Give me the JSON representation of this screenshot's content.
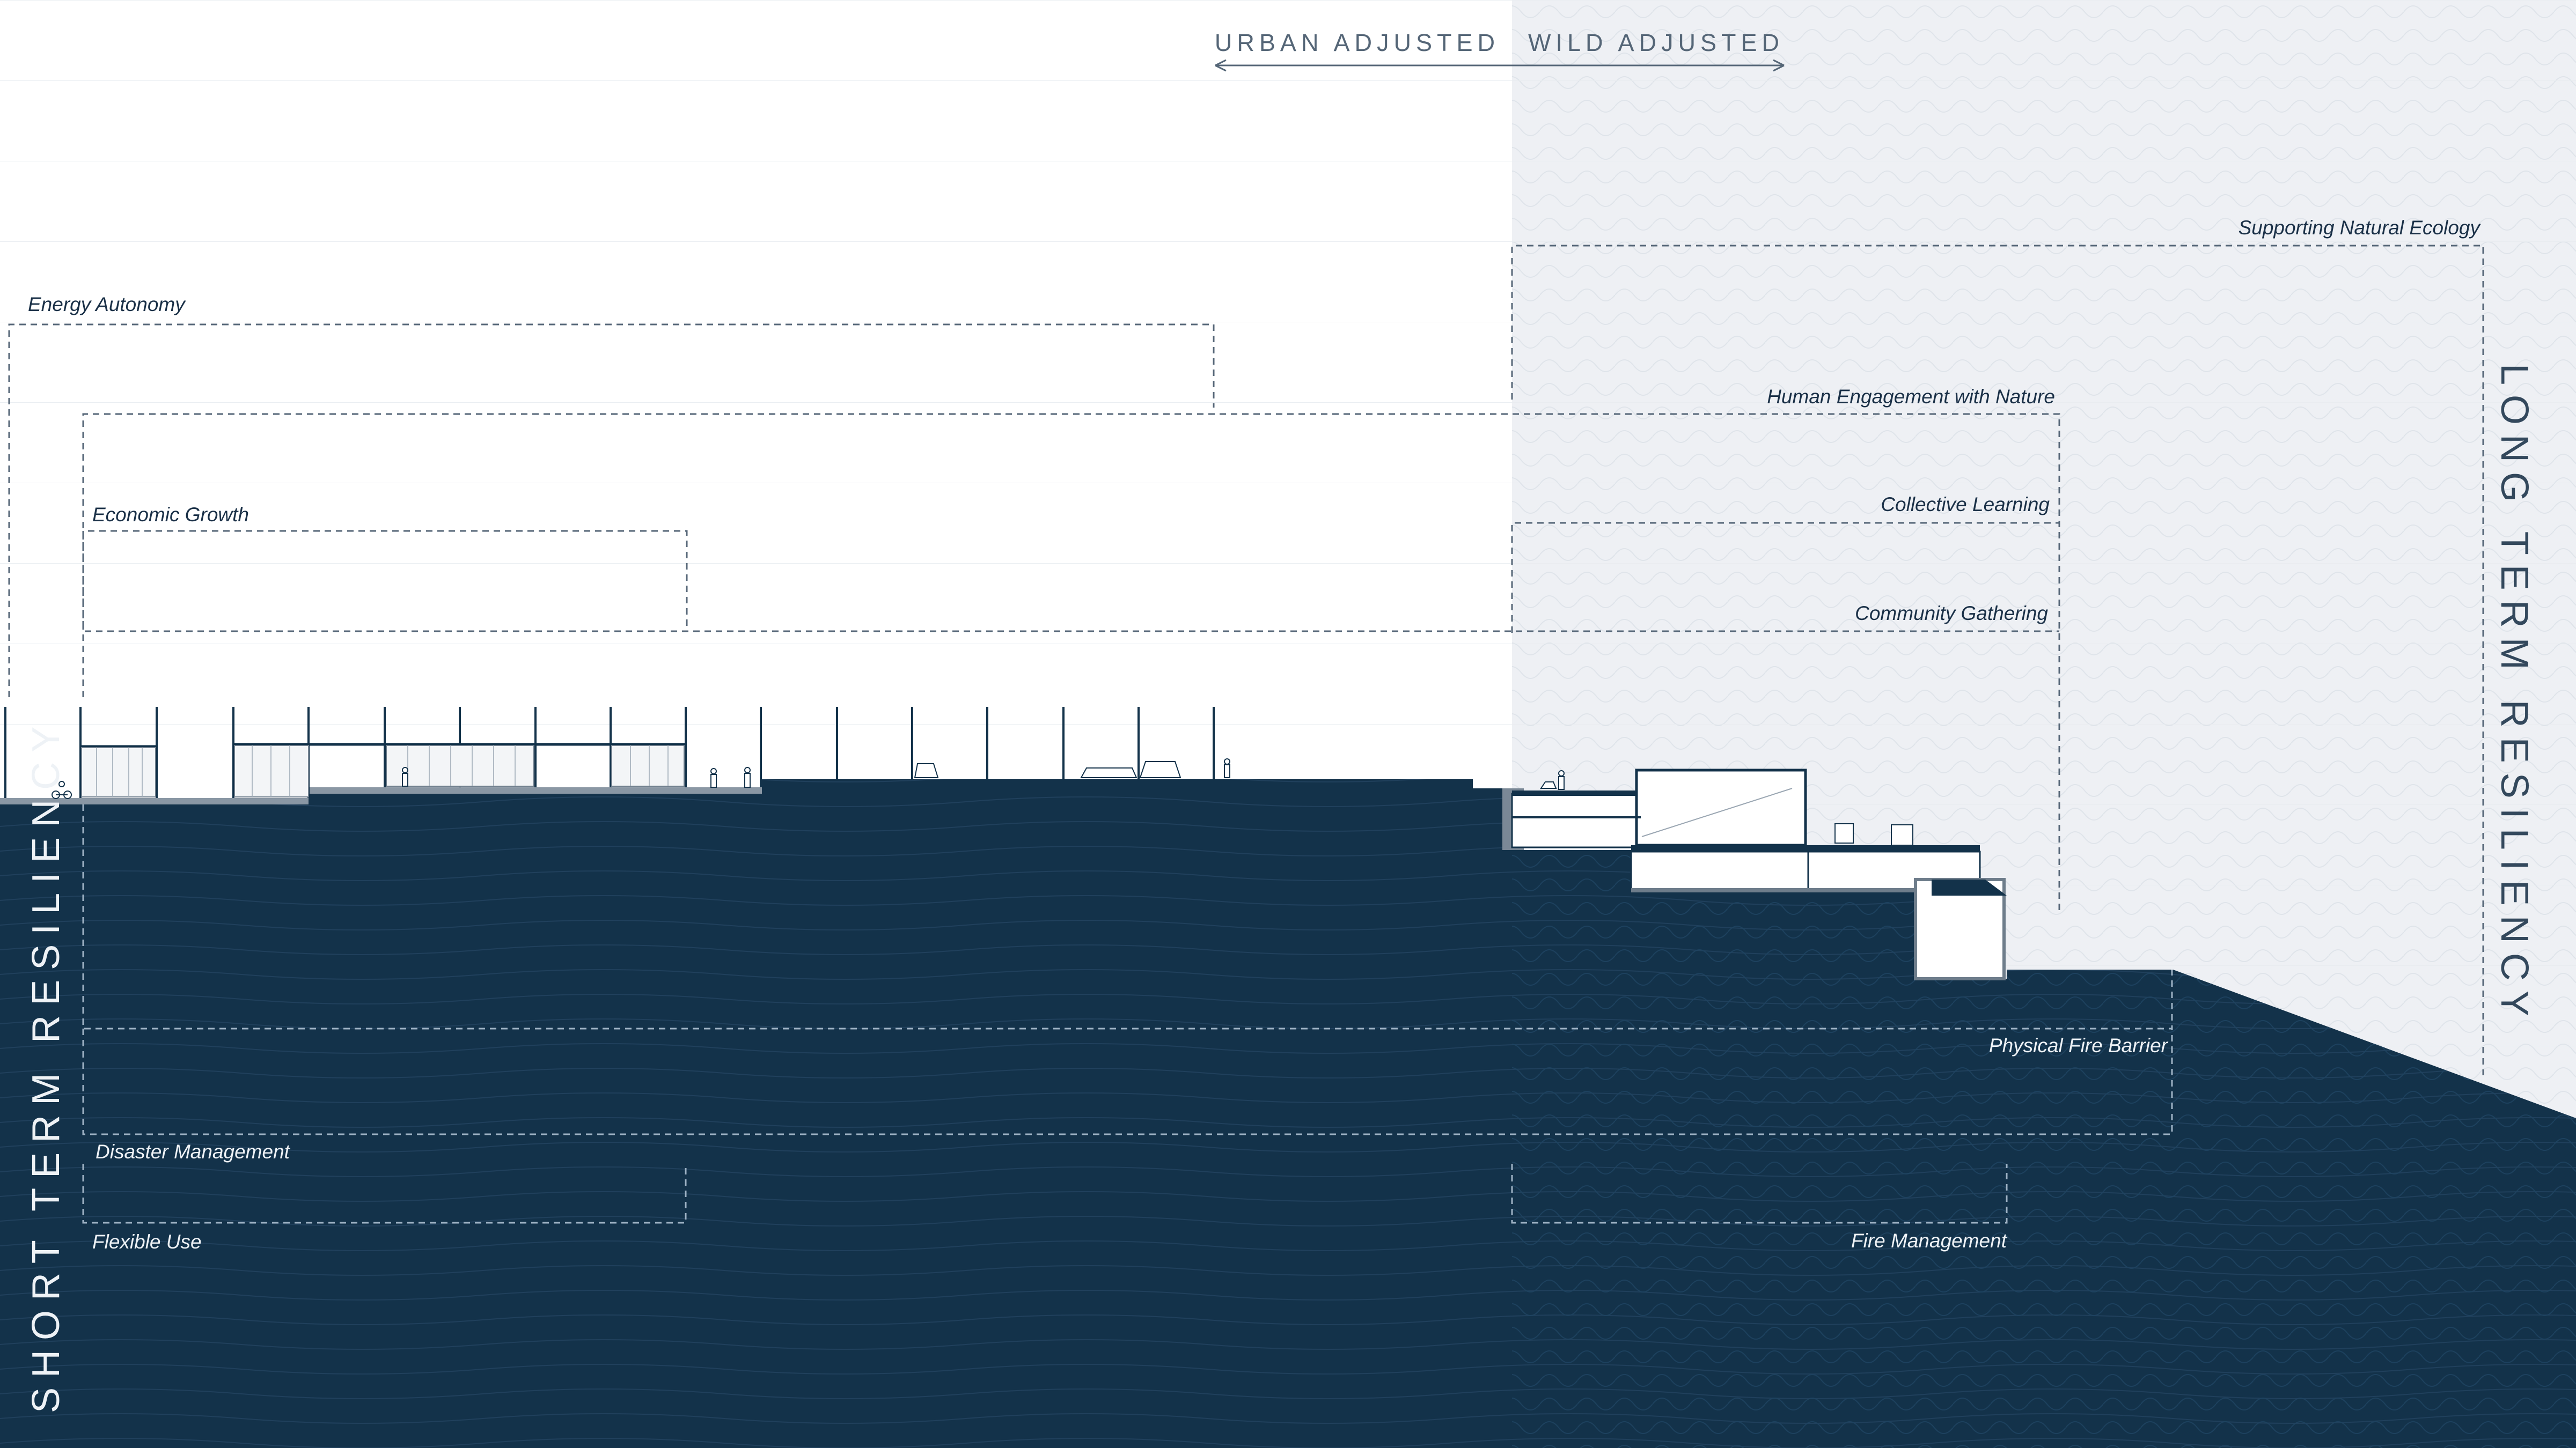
{
  "header": {
    "urban_label": "URBAN ADJUSTED",
    "wild_label": "WILD ADJUSTED"
  },
  "axes": {
    "short_term": "SHORT TERM RESILIENCY",
    "long_term": "LONG TERM RESILIENCY"
  },
  "upper_labels": {
    "supporting_natural_ecology": "Supporting Natural Ecology",
    "energy_autonomy": "Energy Autonomy",
    "human_engagement": "Human Engagement with Nature",
    "economic_growth": "Economic Growth",
    "collective_learning": "Collective Learning",
    "community_gathering": "Community Gathering"
  },
  "lower_labels": {
    "physical_fire_barrier": "Physical Fire Barrier",
    "disaster_management": "Disaster Management",
    "flexible_use": "Flexible Use",
    "fire_management": "Fire Management"
  },
  "colors": {
    "ground": "#13324a",
    "wild_zone": "#eef0f4",
    "bracket": "#556677",
    "text_dark": "#1a3047",
    "text_light": "#eef2f6"
  }
}
